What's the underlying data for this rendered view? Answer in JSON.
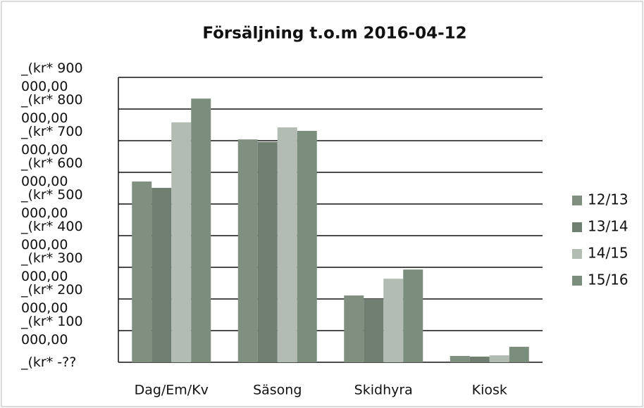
{
  "chart_data": {
    "type": "bar",
    "title": "Försäljning t.o.m 2016-04-12",
    "categories": [
      "Dag/Em/Kv",
      "Säsong",
      "Skidhyra",
      "Kiosk"
    ],
    "series": [
      {
        "name": "12/13",
        "color": "#808f80",
        "values": [
          571000,
          704000,
          211000,
          20000
        ]
      },
      {
        "name": "13/14",
        "color": "#6f7e71",
        "values": [
          551000,
          696000,
          200000,
          18000
        ]
      },
      {
        "name": "14/15",
        "color": "#b2bcb2",
        "values": [
          758000,
          742000,
          264000,
          22000
        ]
      },
      {
        "name": "15/16",
        "color": "#7b8d7d",
        "values": [
          833000,
          731000,
          293000,
          49000
        ]
      }
    ],
    "ylim": [
      0,
      900000
    ],
    "yticks": [
      {
        "value": 0,
        "label": "_(kr* -??"
      },
      {
        "value": 100000,
        "label": "_(kr* 100 000,00"
      },
      {
        "value": 200000,
        "label": "_(kr* 200 000,00"
      },
      {
        "value": 300000,
        "label": "_(kr* 300 000,00"
      },
      {
        "value": 400000,
        "label": "_(kr* 400 000,00"
      },
      {
        "value": 500000,
        "label": "_(kr* 500 000,00"
      },
      {
        "value": 600000,
        "label": "_(kr* 600 000,00"
      },
      {
        "value": 700000,
        "label": "_(kr* 700 000,00"
      },
      {
        "value": 800000,
        "label": "_(kr* 800 000,00"
      },
      {
        "value": 900000,
        "label": "_(kr* 900 000,00"
      }
    ],
    "grid": true,
    "legend": "right"
  }
}
